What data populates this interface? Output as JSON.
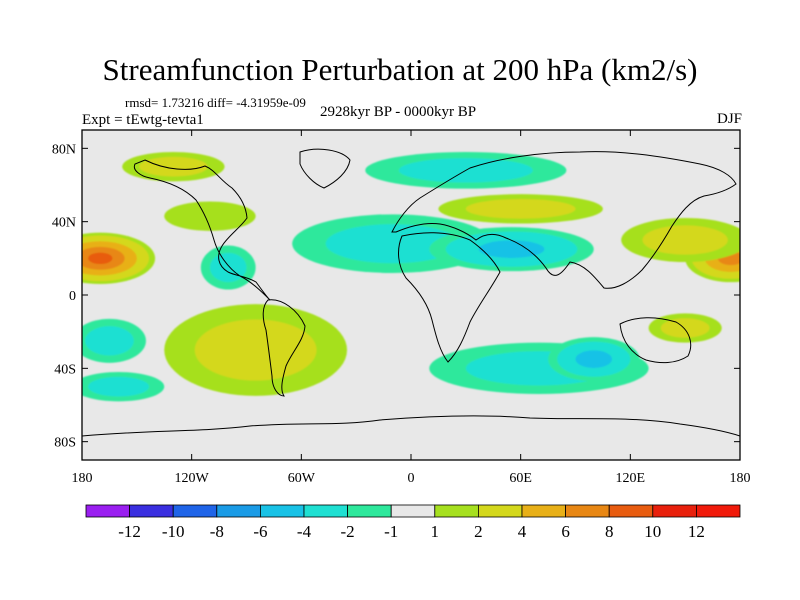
{
  "title": "Streamfunction Perturbation at 200 hPa (km2/s)",
  "stats_text": "rmsd= 1.73216 diff= -4.31959e-09",
  "experiment_text": "Expt = tEwtg-tevta1",
  "period_text": "2928kyr BP - 0000kyr BP",
  "season": "DJF",
  "chart_data": {
    "type": "heatmap",
    "projection": "cylindrical-equidistant",
    "xlim": [
      -180,
      180
    ],
    "ylim": [
      -90,
      90
    ],
    "x_ticks": [
      {
        "value": -180,
        "label": "180"
      },
      {
        "value": -120,
        "label": "120W"
      },
      {
        "value": -60,
        "label": "60W"
      },
      {
        "value": 0,
        "label": "0"
      },
      {
        "value": 60,
        "label": "60E"
      },
      {
        "value": 120,
        "label": "120E"
      },
      {
        "value": 180,
        "label": "180"
      }
    ],
    "y_ticks": [
      {
        "value": 80,
        "label": "80N"
      },
      {
        "value": 40,
        "label": "40N"
      },
      {
        "value": 0,
        "label": "0"
      },
      {
        "value": -40,
        "label": "40S"
      },
      {
        "value": -80,
        "label": "80S"
      }
    ],
    "colorbar": {
      "labels": [
        "-12",
        "-10",
        "-8",
        "-6",
        "-4",
        "-2",
        "-1",
        "1",
        "2",
        "4",
        "6",
        "8",
        "10",
        "12"
      ],
      "colors": [
        "#9a1ff0",
        "#3a2fe0",
        "#1f64e8",
        "#1a9be6",
        "#19c2e6",
        "#1fe0d2",
        "#2ee89c",
        "#e8e8e8",
        "#a6e01f",
        "#d4d81c",
        "#e8b018",
        "#e88714",
        "#e85c10",
        "#e8200c",
        "#f01a0a"
      ]
    },
    "anomaly_features": [
      {
        "lon": -170,
        "lat": 20,
        "value": 8,
        "rx": 30,
        "ry": 14
      },
      {
        "lon": 175,
        "lat": 20,
        "value": 6,
        "rx": 25,
        "ry": 13
      },
      {
        "lon": 150,
        "lat": 30,
        "value": 3,
        "rx": 35,
        "ry": 12
      },
      {
        "lon": 60,
        "lat": 47,
        "value": 2,
        "rx": 45,
        "ry": 8
      },
      {
        "lon": -95,
        "lat": -25,
        "value": 6,
        "rx": 24,
        "ry": 12
      },
      {
        "lon": -65,
        "lat": -35,
        "value": 4,
        "rx": 15,
        "ry": 14
      },
      {
        "lon": -85,
        "lat": -30,
        "value": 2,
        "rx": 50,
        "ry": 25
      },
      {
        "lon": -130,
        "lat": 70,
        "value": 2,
        "rx": 28,
        "ry": 8
      },
      {
        "lon": -110,
        "lat": 43,
        "value": 1,
        "rx": 25,
        "ry": 8
      },
      {
        "lon": -10,
        "lat": 28,
        "value": -2,
        "rx": 55,
        "ry": 16
      },
      {
        "lon": 55,
        "lat": 25,
        "value": -4,
        "rx": 45,
        "ry": 12
      },
      {
        "lon": 70,
        "lat": -40,
        "value": -3,
        "rx": 60,
        "ry": 14
      },
      {
        "lon": 100,
        "lat": -35,
        "value": -5,
        "rx": 25,
        "ry": 12
      },
      {
        "lon": -100,
        "lat": 15,
        "value": -3,
        "rx": 15,
        "ry": 12
      },
      {
        "lon": -165,
        "lat": -25,
        "value": -2,
        "rx": 20,
        "ry": 12
      },
      {
        "lon": -160,
        "lat": -50,
        "value": -2,
        "rx": 25,
        "ry": 8
      },
      {
        "lon": 30,
        "lat": 68,
        "value": -2,
        "rx": 55,
        "ry": 10
      },
      {
        "lon": 150,
        "lat": -18,
        "value": 2,
        "rx": 20,
        "ry": 8
      }
    ]
  }
}
